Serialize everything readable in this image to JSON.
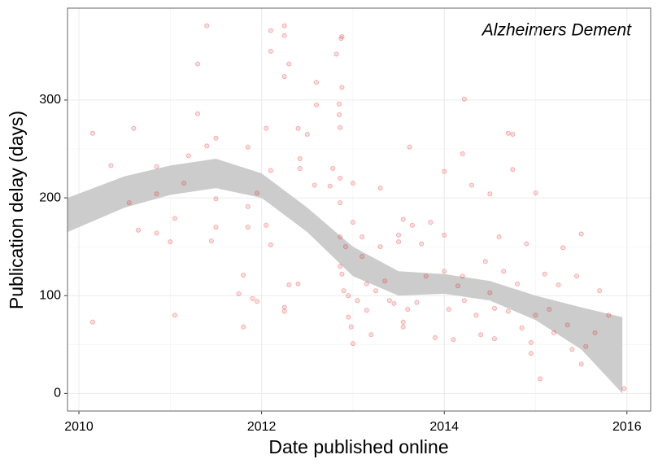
{
  "chart_data": {
    "type": "scatter",
    "title": "Alzheimers Dement",
    "xlabel": "Date published online",
    "ylabel": "Publication delay (days)",
    "x": [
      2010.15,
      2010.15,
      2010.35,
      2010.6,
      2010.55,
      2010.65,
      2010.85,
      2010.85,
      2010.85,
      2011.0,
      2011.05,
      2011.05,
      2011.15,
      2011.2,
      2011.3,
      2011.3,
      2011.4,
      2011.4,
      2011.5,
      2011.5,
      2011.45,
      2011.5,
      2011.75,
      2011.8,
      2011.8,
      2011.85,
      2011.85,
      2011.85,
      2011.9,
      2011.95,
      2011.95,
      2012.05,
      2012.05,
      2012.1,
      2012.1,
      2012.1,
      2012.1,
      2012.25,
      2012.25,
      2012.25,
      2012.25,
      2012.25,
      2012.3,
      2012.3,
      2012.4,
      2012.4,
      2012.42,
      2012.42,
      2012.5,
      2012.58,
      2012.6,
      2012.6,
      2012.75,
      2012.78,
      2012.82,
      2012.85,
      2012.85,
      2012.86,
      2012.87,
      2012.88,
      2012.88,
      2012.86,
      2012.86,
      2012.86,
      2012.86,
      2012.88,
      2012.9,
      2012.92,
      2012.95,
      2012.95,
      2012.98,
      2013.0,
      2013.0,
      2013.0,
      2013.05,
      2013.1,
      2013.1,
      2013.15,
      2013.15,
      2013.2,
      2013.25,
      2013.3,
      2013.3,
      2013.35,
      2013.4,
      2013.45,
      2013.5,
      2013.5,
      2013.55,
      2013.55,
      2013.55,
      2013.6,
      2013.62,
      2013.65,
      2013.7,
      2013.75,
      2013.8,
      2013.85,
      2013.9,
      2014.0,
      2014.0,
      2014.0,
      2014.05,
      2014.1,
      2014.15,
      2014.2,
      2014.2,
      2014.22,
      2014.22,
      2014.3,
      2014.35,
      2014.4,
      2014.45,
      2014.5,
      2014.5,
      2014.55,
      2014.55,
      2014.6,
      2014.65,
      2014.7,
      2014.7,
      2014.75,
      2014.75,
      2014.8,
      2014.85,
      2014.9,
      2014.95,
      2014.95,
      2015.0,
      2015.0,
      2015.05,
      2015.1,
      2015.15,
      2015.2,
      2015.25,
      2015.3,
      2015.35,
      2015.4,
      2015.45,
      2015.5,
      2015.5,
      2015.55,
      2015.65,
      2015.7,
      2015.8,
      2015.97
    ],
    "y": [
      266,
      73,
      233,
      271,
      195,
      167,
      232,
      204,
      164,
      155,
      80,
      179,
      215,
      243,
      337,
      286,
      376,
      253,
      261,
      199,
      156,
      170,
      102,
      121,
      68,
      252,
      191,
      170,
      97,
      205,
      94,
      271,
      172,
      371,
      350,
      228,
      152,
      376,
      366,
      324,
      88,
      84,
      337,
      111,
      271,
      112,
      240,
      230,
      265,
      213,
      318,
      295,
      212,
      230,
      347,
      296,
      285,
      272,
      363,
      365,
      313,
      220,
      195,
      160,
      130,
      122,
      105,
      150,
      100,
      78,
      68,
      51,
      175,
      215,
      95,
      160,
      140,
      112,
      85,
      60,
      105,
      210,
      150,
      115,
      95,
      92,
      162,
      155,
      178,
      73,
      68,
      86,
      252,
      172,
      93,
      153,
      120,
      175,
      57,
      162,
      125,
      227,
      86,
      55,
      110,
      245,
      120,
      301,
      95,
      213,
      80,
      60,
      135,
      204,
      103,
      87,
      56,
      160,
      125,
      84,
      266,
      265,
      229,
      112,
      67,
      153,
      52,
      41,
      205,
      80,
      15,
      122,
      86,
      62,
      111,
      149,
      70,
      45,
      120,
      163,
      30,
      48,
      62,
      105,
      80,
      5
    ],
    "color": "#e41a1c",
    "band": {
      "x": [
        2009.875,
        2010.5,
        2011,
        2011.5,
        2012,
        2012.5,
        2013,
        2013.5,
        2014,
        2014.5,
        2015,
        2015.5,
        2015.95
      ],
      "upper": [
        200,
        222,
        233,
        240,
        225,
        190,
        150,
        125,
        122,
        115,
        100,
        88,
        78
      ],
      "lower": [
        165,
        190,
        203,
        210,
        200,
        165,
        120,
        100,
        102,
        95,
        75,
        45,
        0
      ],
      "color": "#cccccc"
    },
    "xlim": [
      2009.875,
      2016.26
    ],
    "ylim": [
      -18,
      394
    ],
    "xticks": [
      2010,
      2012,
      2014,
      2016
    ],
    "yticks": [
      0,
      100,
      200,
      300
    ],
    "grid": true
  }
}
